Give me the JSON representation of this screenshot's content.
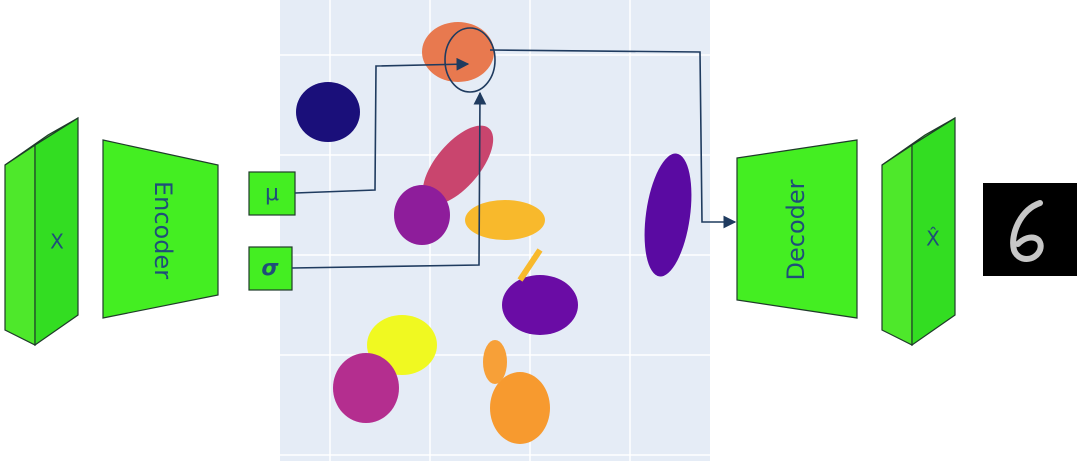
{
  "input": {
    "label": "X"
  },
  "encoder": {
    "label": "Encoder"
  },
  "latent": {
    "mu": "μ",
    "sigma": "σ"
  },
  "decoder": {
    "label": "Decoder"
  },
  "output": {
    "label": "X̂"
  }
}
